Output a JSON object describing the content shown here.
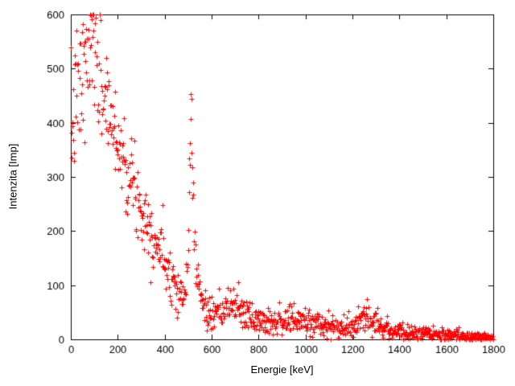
{
  "chart_data": {
    "type": "scatter",
    "title": "",
    "xlabel": "Energie [keV]",
    "ylabel": "Intenzita [Imp]",
    "xlim": [
      0,
      1800
    ],
    "ylim": [
      0,
      600
    ],
    "x_ticks": [
      0,
      200,
      400,
      600,
      800,
      1000,
      1200,
      1400,
      1600,
      1800
    ],
    "y_ticks": [
      0,
      100,
      200,
      300,
      400,
      500,
      600
    ],
    "grid": false,
    "legend": "none",
    "marker": "plus",
    "marker_color": "#ff0000",
    "axis_color": "#000000",
    "n_points": 1000,
    "noise_seed": 7,
    "noise_scale": 2.2,
    "low_energy_noise_boost": 1.35,
    "notable_peaks_keV": [
      511,
      700,
      1275
    ],
    "profile": [
      [
        0,
        380
      ],
      [
        20,
        440
      ],
      [
        40,
        470
      ],
      [
        60,
        500
      ],
      [
        80,
        530
      ],
      [
        100,
        540
      ],
      [
        115,
        520
      ],
      [
        130,
        480
      ],
      [
        150,
        440
      ],
      [
        170,
        410
      ],
      [
        190,
        380
      ],
      [
        210,
        350
      ],
      [
        230,
        330
      ],
      [
        250,
        300
      ],
      [
        270,
        280
      ],
      [
        290,
        255
      ],
      [
        310,
        235
      ],
      [
        330,
        215
      ],
      [
        350,
        195
      ],
      [
        370,
        175
      ],
      [
        390,
        158
      ],
      [
        410,
        140
      ],
      [
        430,
        118
      ],
      [
        450,
        100
      ],
      [
        465,
        85
      ],
      [
        478,
        74
      ],
      [
        488,
        85
      ],
      [
        496,
        140
      ],
      [
        503,
        260
      ],
      [
        508,
        360
      ],
      [
        512,
        410
      ],
      [
        517,
        330
      ],
      [
        523,
        230
      ],
      [
        530,
        160
      ],
      [
        540,
        110
      ],
      [
        552,
        82
      ],
      [
        565,
        62
      ],
      [
        580,
        50
      ],
      [
        600,
        44
      ],
      [
        620,
        44
      ],
      [
        640,
        47
      ],
      [
        660,
        54
      ],
      [
        680,
        64
      ],
      [
        700,
        68
      ],
      [
        715,
        60
      ],
      [
        730,
        50
      ],
      [
        750,
        43
      ],
      [
        775,
        39
      ],
      [
        800,
        37
      ],
      [
        850,
        36
      ],
      [
        900,
        36
      ],
      [
        950,
        35
      ],
      [
        1000,
        34
      ],
      [
        1050,
        30
      ],
      [
        1100,
        24
      ],
      [
        1150,
        20
      ],
      [
        1200,
        24
      ],
      [
        1240,
        34
      ],
      [
        1265,
        48
      ],
      [
        1285,
        44
      ],
      [
        1310,
        30
      ],
      [
        1340,
        21
      ],
      [
        1380,
        16
      ],
      [
        1420,
        13
      ],
      [
        1460,
        11
      ],
      [
        1500,
        10
      ],
      [
        1550,
        8
      ],
      [
        1600,
        7
      ],
      [
        1650,
        6
      ],
      [
        1700,
        5
      ],
      [
        1750,
        4
      ],
      [
        1800,
        4
      ]
    ]
  }
}
